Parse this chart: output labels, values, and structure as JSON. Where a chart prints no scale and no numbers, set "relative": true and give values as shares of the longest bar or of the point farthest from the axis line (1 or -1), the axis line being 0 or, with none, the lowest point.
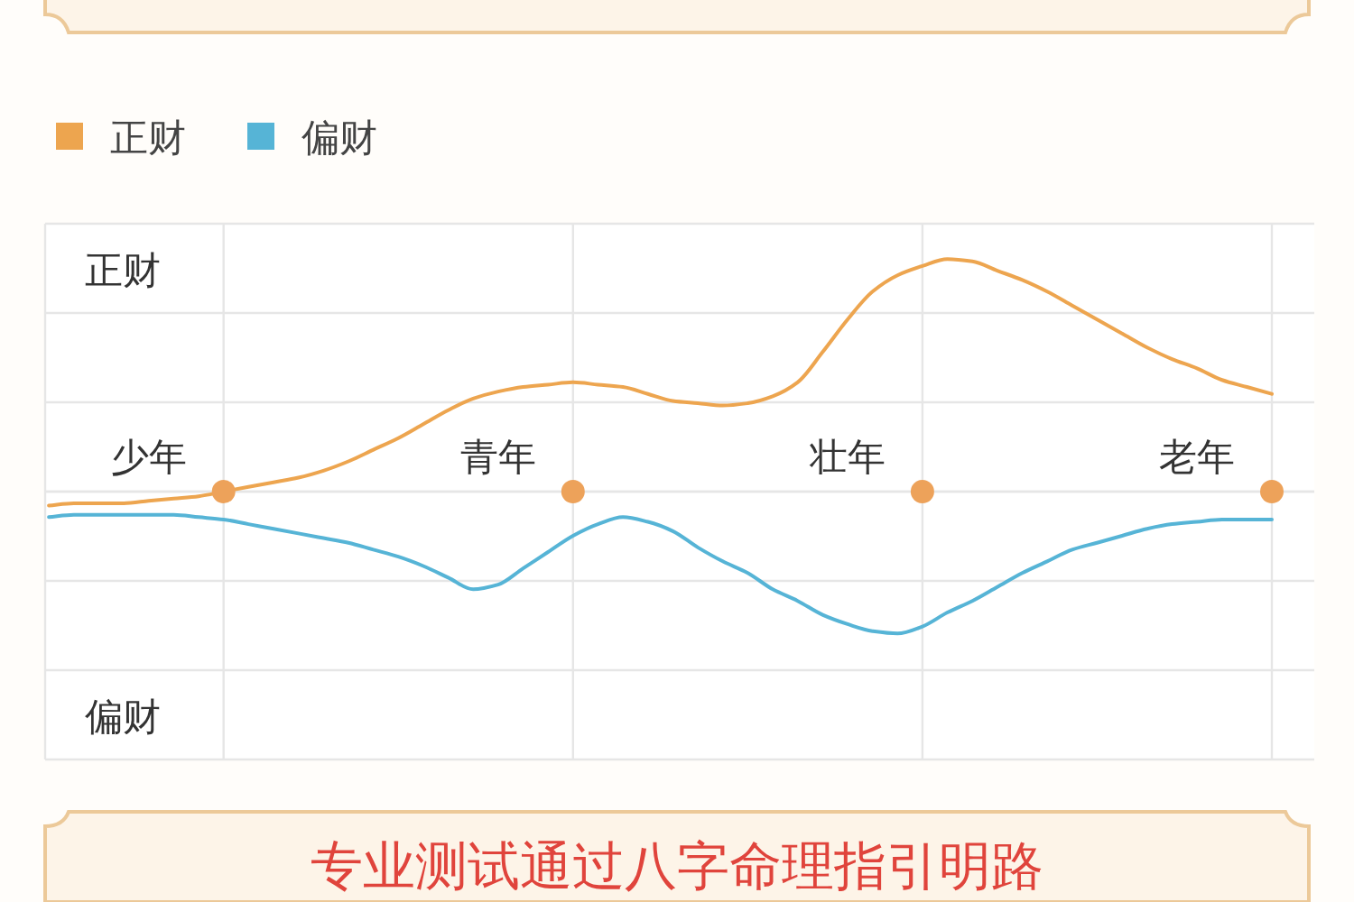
{
  "chart_data": {
    "type": "line",
    "relative": true,
    "grid": true,
    "legend": "top left",
    "categories": [
      null,
      null,
      null,
      null,
      "少年",
      null,
      null,
      null,
      null,
      null,
      null,
      null,
      null,
      null,
      null,
      null,
      null,
      null,
      "青年",
      null,
      null,
      null,
      null,
      null,
      null,
      null,
      null,
      null,
      null,
      null,
      null,
      null,
      "壮年",
      null,
      null,
      null,
      null,
      null,
      null,
      null,
      null,
      null,
      null,
      null,
      null,
      null,
      "老年",
      null,
      null,
      null
    ],
    "series": [
      {
        "name": "正财",
        "color": "#eda54f",
        "values": [
          -0.06,
          -0.05,
          -0.05,
          -0.05,
          -0.04,
          -0.03,
          -0.02,
          0,
          0.02,
          0.04,
          0.06,
          0.09,
          0.13,
          0.18,
          0.23,
          0.29,
          0.35,
          0.4,
          0.43,
          0.45,
          0.46,
          0.47,
          0.46,
          0.45,
          0.42,
          0.39,
          0.38,
          0.37,
          0.38,
          0.41,
          0.47,
          0.6,
          0.74,
          0.86,
          0.93,
          0.97,
          1.0,
          0.99,
          0.95,
          0.91,
          0.86,
          0.8,
          0.74,
          0.68,
          0.62,
          0.57,
          0.53,
          0.48,
          0.45,
          0.42
        ]
      },
      {
        "name": "偏财",
        "color": "#56b4d6",
        "values": [
          -0.11,
          -0.1,
          -0.1,
          -0.1,
          -0.1,
          -0.1,
          -0.11,
          -0.12,
          -0.14,
          -0.16,
          -0.18,
          -0.2,
          -0.22,
          -0.25,
          -0.28,
          -0.32,
          -0.37,
          -0.42,
          -0.4,
          -0.33,
          -0.26,
          -0.19,
          -0.14,
          -0.11,
          -0.13,
          -0.17,
          -0.24,
          -0.3,
          -0.35,
          -0.42,
          -0.47,
          -0.53,
          -0.57,
          -0.6,
          -0.61,
          -0.58,
          -0.52,
          -0.47,
          -0.41,
          -0.35,
          -0.3,
          -0.25,
          -0.22,
          -0.19,
          -0.16,
          -0.14,
          -0.13,
          -0.12,
          -0.12,
          -0.12
        ]
      },
      {
        "type": "scatter",
        "marker": "circle",
        "color": "#eda25a",
        "values": [
          null,
          null,
          null,
          null,
          null,
          null,
          null,
          0,
          null,
          null,
          null,
          null,
          null,
          null,
          null,
          null,
          null,
          null,
          null,
          null,
          null,
          0,
          null,
          null,
          null,
          null,
          null,
          null,
          null,
          null,
          null,
          null,
          null,
          null,
          null,
          0,
          null,
          null,
          null,
          null,
          null,
          null,
          null,
          null,
          null,
          null,
          null,
          null,
          null,
          0
        ]
      }
    ],
    "annotations": [
      "正财",
      "偏财",
      "专业测试通过八字命理指引明路"
    ]
  }
}
